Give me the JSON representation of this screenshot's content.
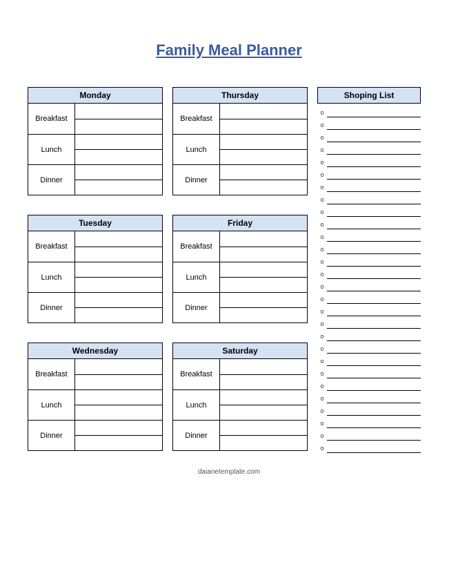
{
  "title": "Family Meal Planner",
  "footer": "daianetemplate.com",
  "colors": {
    "header_bg": "#d4e2f4",
    "title_color": "#3a5c9e",
    "border": "#000000",
    "background": "#ffffff"
  },
  "meals": {
    "breakfast": "Breakfast",
    "lunch": "Lunch",
    "dinner": "Dinner"
  },
  "days_left": [
    "Monday",
    "Tuesday",
    "Wednesday"
  ],
  "days_right": [
    "Thursday",
    "Friday",
    "Saturday"
  ],
  "shopping": {
    "header": "Shoping List",
    "bullet": "o",
    "count": 28
  },
  "typography": {
    "title_fontsize": 22,
    "header_fontsize": 12,
    "label_fontsize": 11
  }
}
